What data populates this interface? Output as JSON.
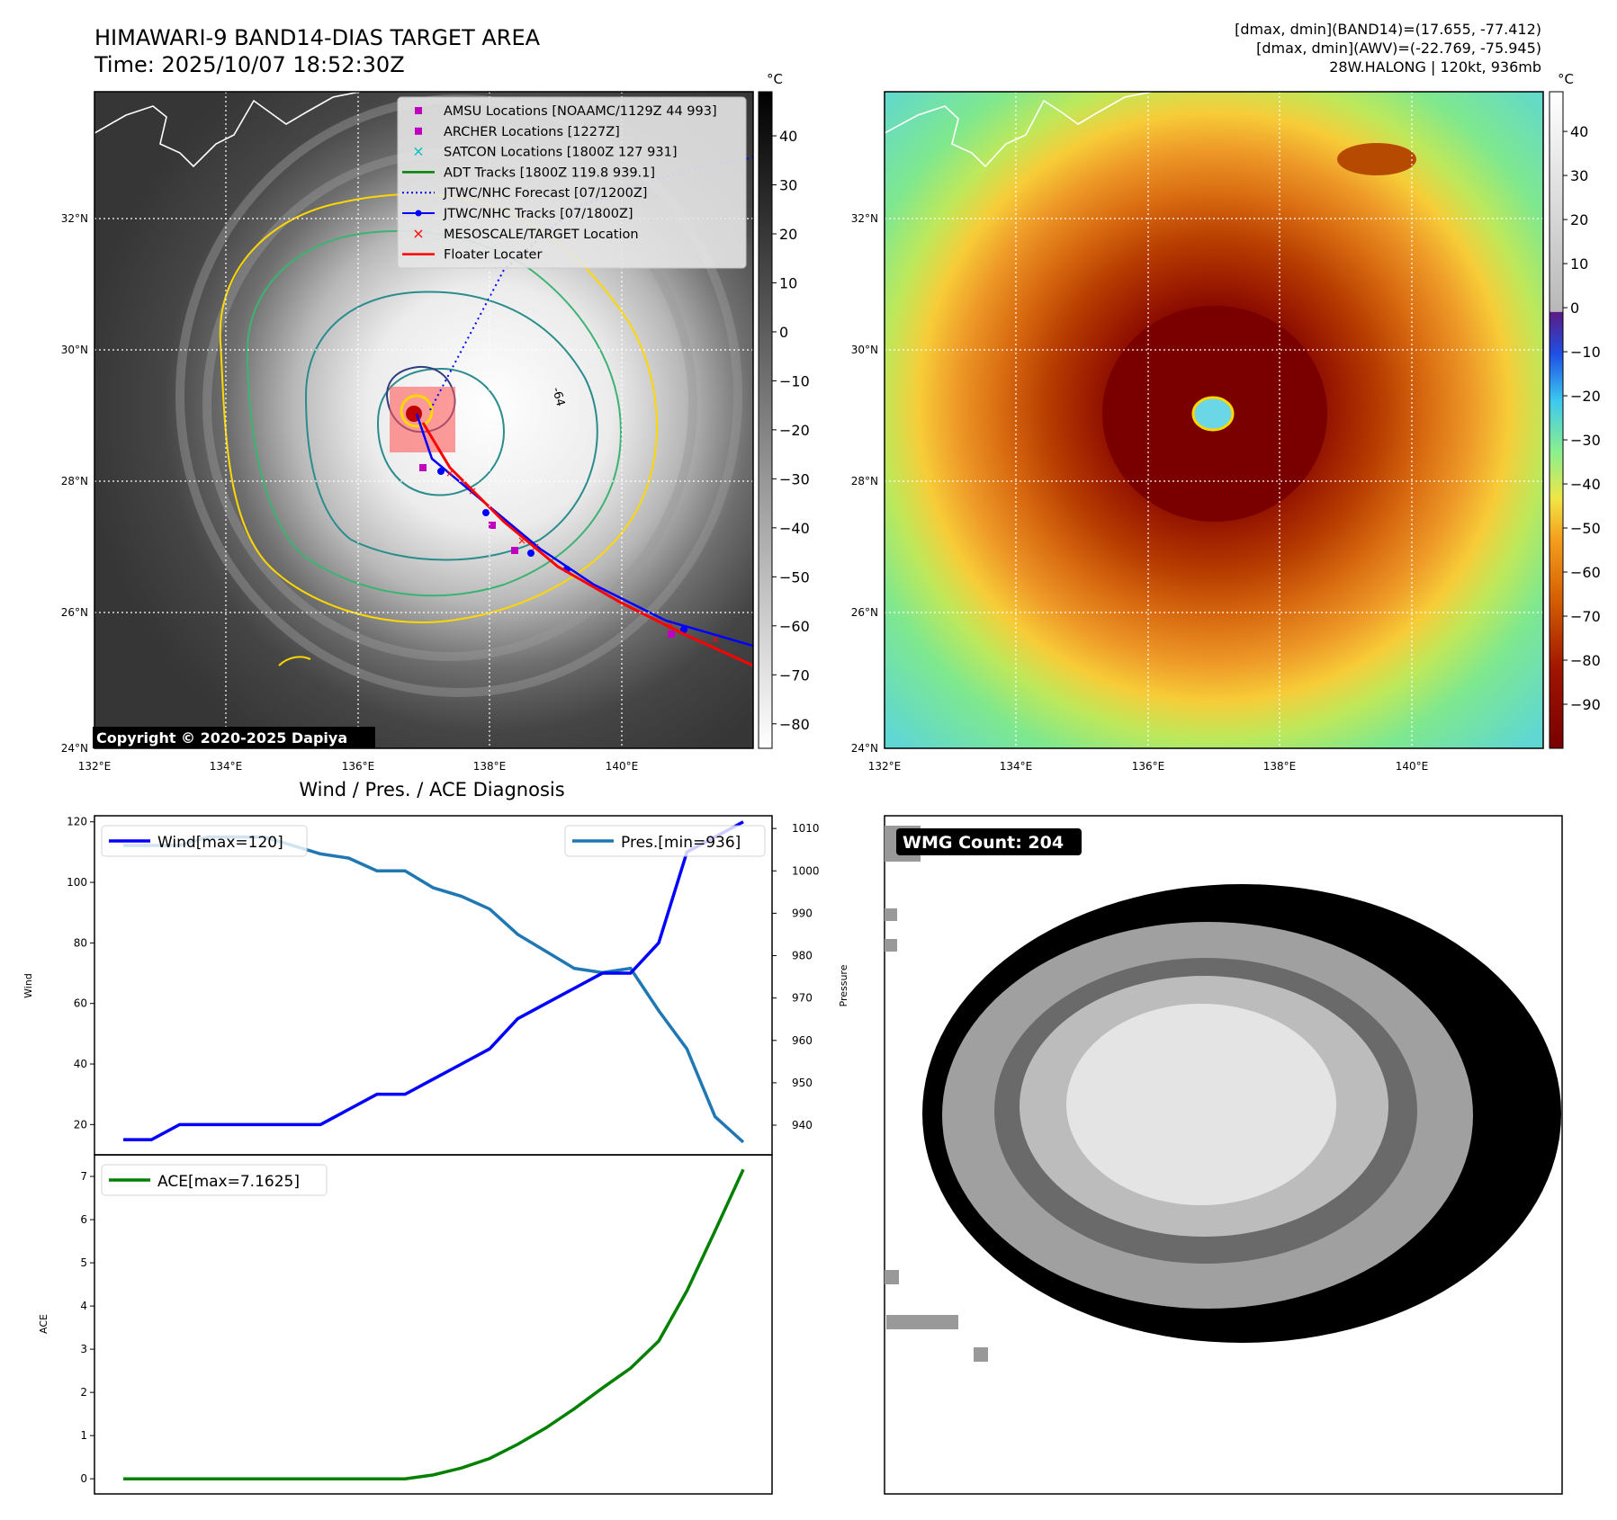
{
  "header": {
    "title_line1": "HIMAWARI-9 BAND14-DIAS TARGET AREA",
    "title_line2": "Time: 2025/10/07 18:52:30Z",
    "info_line1": "[dmax, dmin](BAND14)=(17.655, -77.412)",
    "info_line2": "[dmax, dmin](AWV)=(-22.769, -75.945)",
    "info_line3": "28W.HALONG | 120kt, 936mb"
  },
  "map_axes": {
    "lon_ticks": [
      "132°E",
      "134°E",
      "136°E",
      "138°E",
      "140°E"
    ],
    "lat_ticks": [
      "32°N",
      "30°N",
      "28°N",
      "26°N",
      "24°N"
    ]
  },
  "ir_map": {
    "copyright": "Copyright © 2020-2025 Dapiya",
    "contour_label": "-64",
    "colorbar": {
      "unit": "°C",
      "ticks": [
        "40",
        "30",
        "20",
        "10",
        "0",
        "−10",
        "−20",
        "−30",
        "−40",
        "−50",
        "−60",
        "−70",
        "−80"
      ]
    },
    "legend": [
      {
        "label": "AMSU Locations [NOAAMC/1129Z 44 993]",
        "marker": "square",
        "color": "#bf00bf"
      },
      {
        "label": "ARCHER Locations [1227Z]",
        "marker": "square",
        "color": "#bf00bf"
      },
      {
        "label": "SATCON Locations [1800Z 127 931]",
        "marker": "x",
        "color": "#00bfbf"
      },
      {
        "label": "ADT Tracks [1800Z 119.8 939.1]",
        "marker": "line",
        "color": "#008000"
      },
      {
        "label": "JTWC/NHC Forecast [07/1200Z]",
        "marker": "dotted",
        "color": "#0000ff"
      },
      {
        "label": "JTWC/NHC Tracks [07/1800Z]",
        "marker": "line-dot",
        "color": "#0000ff"
      },
      {
        "label": "MESOSCALE/TARGET Location",
        "marker": "x",
        "color": "#ff0000"
      },
      {
        "label": "Floater Locater",
        "marker": "line",
        "color": "#ff0000"
      }
    ]
  },
  "awv_map": {
    "colorbar": {
      "unit": "°C",
      "ticks": [
        "40",
        "30",
        "20",
        "10",
        "0",
        "−10",
        "−20",
        "−30",
        "−40",
        "−50",
        "−60",
        "−70",
        "−80",
        "−90"
      ]
    }
  },
  "wmg": {
    "label": "WMG Count: 204"
  },
  "colors": {
    "wind": "#0000ff",
    "pressure": "#1f77b4",
    "ace": "#008000",
    "track_red": "#ff0000",
    "contour_yellow": "#ffd700",
    "contour_green": "#3cb371",
    "contour_teal": "#2a8c8c",
    "contour_navy": "#2f3c7e"
  },
  "chart_data": [
    {
      "type": "line",
      "title": "Wind / Pres. / ACE Diagnosis",
      "ylabel": "Wind",
      "ylabel_right": "Pressure",
      "ylim": [
        10,
        122
      ],
      "ylim_right": [
        933,
        1013
      ],
      "yticks": [
        "120",
        "100",
        "80",
        "60",
        "40",
        "20"
      ],
      "yticks_right": [
        "1010",
        "1000",
        "990",
        "980",
        "970",
        "960",
        "950",
        "940"
      ],
      "series": [
        {
          "name": "Wind[max=120]",
          "axis": "left",
          "values": [
            15,
            15,
            20,
            20,
            20,
            20,
            20,
            20,
            25,
            30,
            30,
            35,
            40,
            45,
            55,
            60,
            65,
            70,
            70,
            80,
            110,
            115,
            120
          ]
        },
        {
          "name": "Pres.[min=936]",
          "axis": "right",
          "values": [
            1006,
            1006,
            1006,
            1008,
            1008,
            1008,
            1006,
            1004,
            1003,
            1000,
            1000,
            996,
            994,
            991,
            985,
            981,
            977,
            976,
            977,
            967,
            958,
            942,
            936
          ]
        }
      ]
    },
    {
      "type": "line",
      "ylabel": "ACE",
      "ylim": [
        -0.35,
        7.5
      ],
      "yticks": [
        "7",
        "6",
        "5",
        "4",
        "3",
        "2",
        "1",
        "0"
      ],
      "series": [
        {
          "name": "ACE[max=7.1625]",
          "values": [
            0,
            0,
            0,
            0,
            0,
            0,
            0,
            0,
            0,
            0,
            0,
            0.09,
            0.25,
            0.47,
            0.8,
            1.18,
            1.62,
            2.1,
            2.56,
            3.19,
            4.35,
            5.74,
            7.1625
          ]
        }
      ]
    }
  ]
}
